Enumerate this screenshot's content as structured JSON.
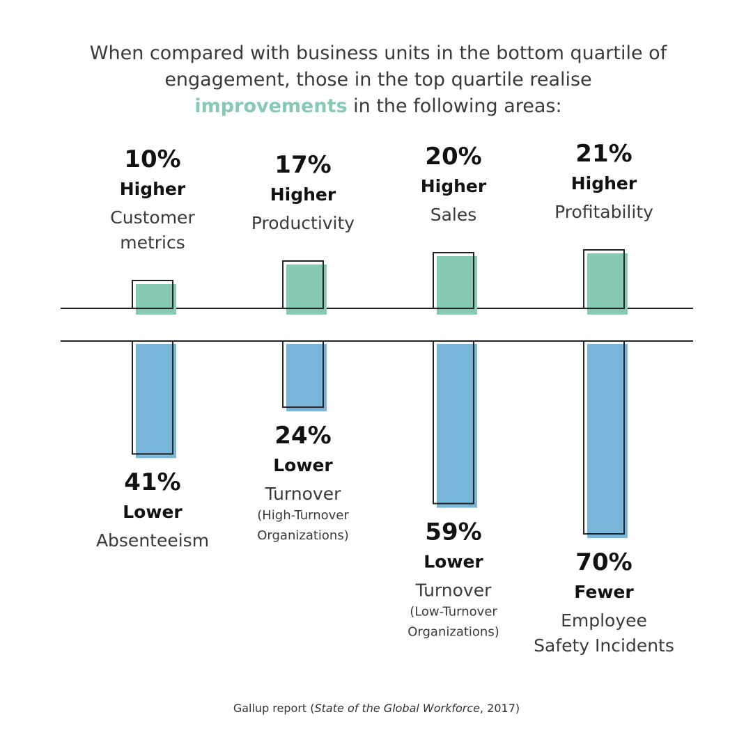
{
  "title": {
    "line1": "When compared with business units in the bottom quartile of",
    "line2": "engagement, those in the top quartile realise",
    "highlight": "improvements",
    "line3_rest": " in the following areas:"
  },
  "colors": {
    "positive_fill": "#86c9b4",
    "negative_fill": "#7ab6d9",
    "outline": "#222222",
    "highlight": "#86c9b4"
  },
  "chart_data": {
    "type": "bar",
    "direction": "diverging",
    "unit": "%",
    "ylim_positive": [
      0,
      21
    ],
    "ylim_negative": [
      0,
      70
    ],
    "upper_bars": [
      {
        "value": 10,
        "pct": "10%",
        "word": "Higher",
        "label": [
          "Customer",
          "metrics"
        ],
        "sub": []
      },
      {
        "value": 17,
        "pct": "17%",
        "word": "Higher",
        "label": [
          "Productivity"
        ],
        "sub": []
      },
      {
        "value": 20,
        "pct": "20%",
        "word": "Higher",
        "label": [
          "Sales"
        ],
        "sub": []
      },
      {
        "value": 21,
        "pct": "21%",
        "word": "Higher",
        "label": [
          "Profitability"
        ],
        "sub": []
      }
    ],
    "lower_bars": [
      {
        "value": 41,
        "pct": "41%",
        "word": "Lower",
        "label": [
          "Absenteeism"
        ],
        "sub": []
      },
      {
        "value": 24,
        "pct": "24%",
        "word": "Lower",
        "label": [
          "Turnover"
        ],
        "sub": [
          "(High-Turnover",
          "Organizations)"
        ]
      },
      {
        "value": 59,
        "pct": "59%",
        "word": "Lower",
        "label": [
          "Turnover"
        ],
        "sub": [
          "(Low-Turnover",
          "Organizations)"
        ]
      },
      {
        "value": 70,
        "pct": "70%",
        "word": "Fewer",
        "label": [
          "Employee",
          "Safety Incidents"
        ],
        "sub": []
      }
    ]
  },
  "footer": {
    "prefix": "Gallup report (",
    "italic": "State of the Global Workforce",
    "suffix": ", 2017)"
  }
}
